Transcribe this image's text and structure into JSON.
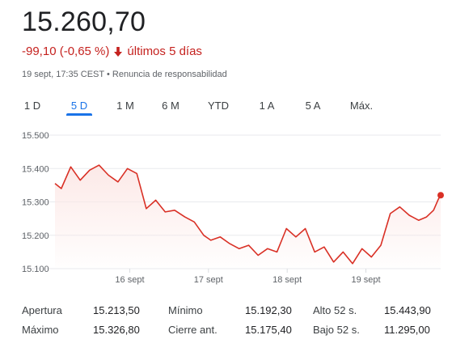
{
  "quote": {
    "price": "15.260,70",
    "change": "-99,10 (-0,65 %)",
    "period_label": "últimos 5 días",
    "timestamp": "19 sept, 17:35 CEST",
    "separator": "•",
    "disclaimer": "Renuncia de responsabilidad",
    "down_color": "#c5221f"
  },
  "tabs": [
    {
      "label": "1 D",
      "active": false
    },
    {
      "label": "5 D",
      "active": true
    },
    {
      "label": "1 M",
      "active": false
    },
    {
      "label": "6 M",
      "active": false
    },
    {
      "label": "YTD",
      "active": false
    },
    {
      "label": "1 A",
      "active": false
    },
    {
      "label": "5 A",
      "active": false
    },
    {
      "label": "Máx.",
      "active": false
    }
  ],
  "chart_data": {
    "type": "area",
    "y_ticks": [
      "15.500",
      "15.400",
      "15.300",
      "15.200",
      "15.100"
    ],
    "y_tick_values": [
      15500,
      15400,
      15300,
      15200,
      15100
    ],
    "ylim": [
      15100,
      15500
    ],
    "x_labels": [
      "16 sept",
      "17 sept",
      "18 sept",
      "19 sept"
    ],
    "x_label_positions": [
      1,
      2,
      3,
      4
    ],
    "xlim": [
      0.05,
      4.95
    ],
    "grid": "horizontal",
    "line_color": "#d93025",
    "series": [
      {
        "x": [
          0.05,
          0.13,
          0.25,
          0.37,
          0.49,
          0.61,
          0.73,
          0.85,
          0.97,
          1.09,
          1.21,
          1.33,
          1.45,
          1.57,
          1.7,
          1.82,
          1.94,
          2.03,
          2.15,
          2.27,
          2.39,
          2.51,
          2.63,
          2.75,
          2.87,
          2.99,
          3.11,
          3.23,
          3.35,
          3.47,
          3.59,
          3.71,
          3.83,
          3.95,
          4.07,
          4.19,
          4.31,
          4.43,
          4.55,
          4.67,
          4.77,
          4.86,
          4.92
        ],
        "y": [
          15355,
          15340,
          15405,
          15365,
          15395,
          15410,
          15380,
          15360,
          15400,
          15385,
          15280,
          15305,
          15270,
          15275,
          15255,
          15240,
          15200,
          15185,
          15195,
          15175,
          15160,
          15170,
          15140,
          15160,
          15150,
          15220,
          15195,
          15220,
          15150,
          15165,
          15120,
          15150,
          15115,
          15160,
          15135,
          15170,
          15265,
          15285,
          15260,
          15245,
          15255,
          15275,
          15308
        ]
      }
    ],
    "last_point": {
      "x": 4.95,
      "y": 15320
    }
  },
  "stats": {
    "col1": [
      {
        "label": "Apertura",
        "value": "15.213,50"
      },
      {
        "label": "Máximo",
        "value": "15.326,80"
      }
    ],
    "col2": [
      {
        "label": "Mínimo",
        "value": "15.192,30"
      },
      {
        "label": "Cierre ant.",
        "value": "15.175,40"
      }
    ],
    "col3": [
      {
        "label": "Alto 52 s.",
        "value": "15.443,90"
      },
      {
        "label": "Bajo 52 s.",
        "value": "11.295,00"
      }
    ]
  }
}
